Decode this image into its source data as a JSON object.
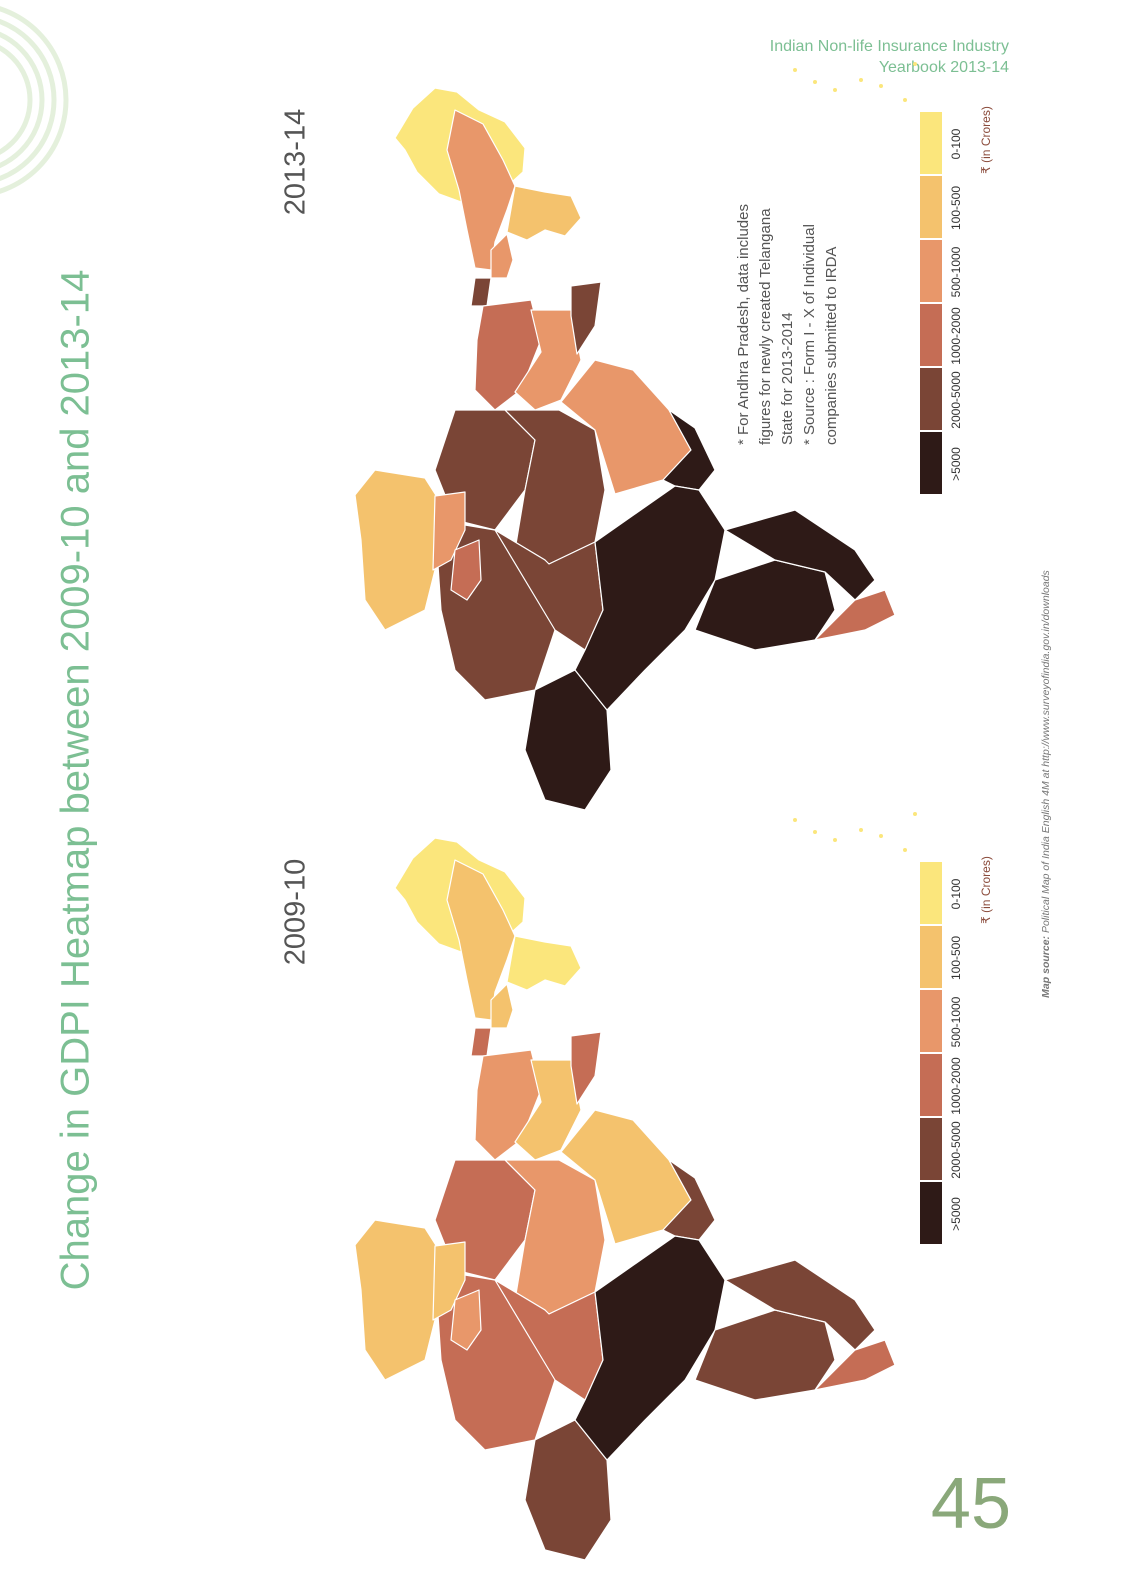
{
  "header": {
    "line1": "Indian Non-life Insurance Industry",
    "line2": "Yearbook 2013-14"
  },
  "title": "Change in GDPI Heatmap between 2009-10 and 2013-14",
  "maps": [
    {
      "year": "2009-10",
      "regions": [
        {
          "name": "north-tip",
          "category": "0-100"
        },
        {
          "name": "north-strip",
          "category": "100-500"
        },
        {
          "name": "north-side",
          "category": "0-100"
        },
        {
          "name": "mid-neck",
          "category": "100-500"
        },
        {
          "name": "neck-joint",
          "category": "1000-2000"
        },
        {
          "name": "upper-left",
          "category": "500-1000"
        },
        {
          "name": "upper-center",
          "category": "100-500"
        },
        {
          "name": "upper-right",
          "category": "1000-2000"
        },
        {
          "name": "center-left",
          "category": "1000-2000"
        },
        {
          "name": "center",
          "category": "500-1000"
        },
        {
          "name": "center-right",
          "category": "100-500"
        },
        {
          "name": "east-band",
          "category": "2000-5000"
        },
        {
          "name": "west-large",
          "category": "1000-2000"
        },
        {
          "name": "west-mid",
          "category": "1000-2000"
        },
        {
          "name": "south-west",
          "category": "2000-5000"
        },
        {
          "name": "south-center",
          "category": ">5000"
        },
        {
          "name": "south-east",
          "category": "2000-5000"
        },
        {
          "name": "tip-upper",
          "category": "2000-5000"
        },
        {
          "name": "tip",
          "category": "1000-2000"
        },
        {
          "name": "lobe-main",
          "category": "100-500"
        },
        {
          "name": "lobe-mid",
          "category": "100-500"
        },
        {
          "name": "lobe-small",
          "category": "500-1000"
        }
      ]
    },
    {
      "year": "2013-14",
      "regions": [
        {
          "name": "north-tip",
          "category": "0-100"
        },
        {
          "name": "north-strip",
          "category": "500-1000"
        },
        {
          "name": "north-side",
          "category": "100-500"
        },
        {
          "name": "mid-neck",
          "category": "500-1000"
        },
        {
          "name": "neck-joint",
          "category": "2000-5000"
        },
        {
          "name": "upper-left",
          "category": "1000-2000"
        },
        {
          "name": "upper-center",
          "category": "500-1000"
        },
        {
          "name": "upper-right",
          "category": "2000-5000"
        },
        {
          "name": "center-left",
          "category": "2000-5000"
        },
        {
          "name": "center",
          "category": "2000-5000"
        },
        {
          "name": "center-right",
          "category": "500-1000"
        },
        {
          "name": "east-band",
          "category": ">5000"
        },
        {
          "name": "west-large",
          "category": "2000-5000"
        },
        {
          "name": "west-mid",
          "category": "2000-5000"
        },
        {
          "name": "south-west",
          "category": ">5000"
        },
        {
          "name": "south-center",
          "category": ">5000"
        },
        {
          "name": "south-east",
          "category": ">5000"
        },
        {
          "name": "tip-upper",
          "category": ">5000"
        },
        {
          "name": "tip",
          "category": "1000-2000"
        },
        {
          "name": "lobe-main",
          "category": "100-500"
        },
        {
          "name": "lobe-mid",
          "category": "500-1000"
        },
        {
          "name": "lobe-small",
          "category": "1000-2000"
        }
      ]
    }
  ],
  "legend": {
    "categories": [
      {
        "label": ">5000",
        "color": "#2e1a17"
      },
      {
        "label": "2000-5000",
        "color": "#7a4536"
      },
      {
        "label": "1000-2000",
        "color": "#c56d55"
      },
      {
        "label": "500-1000",
        "color": "#e8976a"
      },
      {
        "label": "100-500",
        "color": "#f4c26d"
      },
      {
        "label": "0-100",
        "color": "#fbe67c"
      }
    ],
    "unit_symbol": "₹",
    "unit": "(in Crores)"
  },
  "notes": [
    "* For Andhra Pradesh, data includes",
    "  figures for newly created Telangana",
    "  State for 2013-2014",
    "* Source : Form I - X of Individual",
    "  companies submitted to IRDA"
  ],
  "source": {
    "label": "Map source:",
    "text": "Political Map of India English 4M at http://www.surveyofindia.gov.in/downloads"
  },
  "page_number": "45"
}
